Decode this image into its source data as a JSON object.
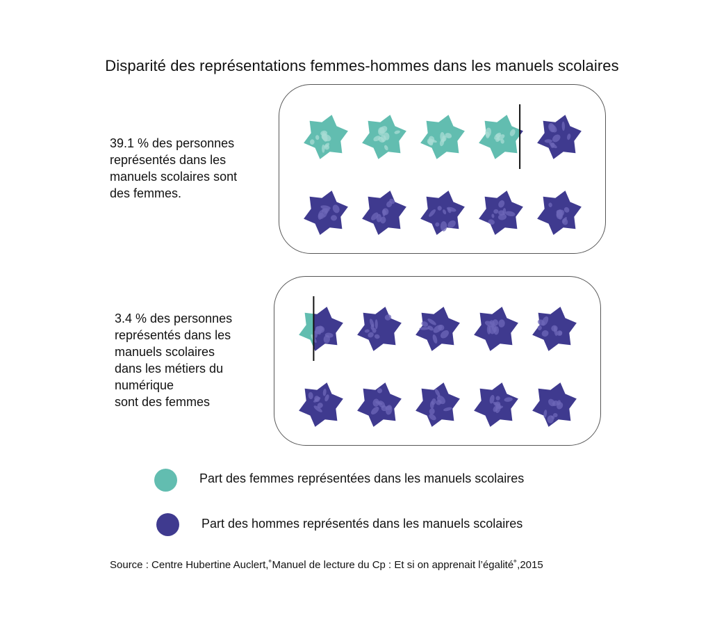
{
  "chart_data": {
    "type": "pictogram",
    "title": "Disparité des représentations femmes-hommes dans les manuels scolaires",
    "icons_per_chart": 10,
    "series_names": [
      "Part des femmes représentées dans les manuels scolaires",
      "Part des hommes représentés dans les manuels scolaires"
    ],
    "panels": [
      {
        "label": "39.1 % des personnes\nreprésentés dans les\nmanuels scolaires sont\ndes femmes.",
        "female_percent": 39.1,
        "male_percent": 60.9
      },
      {
        "label": "3.4 % des personnes\nreprésentés dans les\nmanuels scolaires\ndans les métiers du\nnumérique\nsont des femmes",
        "female_percent": 3.4,
        "male_percent": 96.6
      }
    ]
  },
  "legend": {
    "female_label": "Part des femmes représentées dans les manuels scolaires",
    "male_label": "Part des hommes représentés dans les manuels scolaires"
  },
  "source": "Source :  Centre Hubertine Auclert,˚Manuel de lecture du Cp : Et si on apprenait l’égalité˚,2015",
  "colors": {
    "female": "#62bdb0",
    "male": "#3f3a8f",
    "female_pattern": "#a8dcd4",
    "male_pattern": "#6e67b8",
    "divider": "#111111"
  }
}
